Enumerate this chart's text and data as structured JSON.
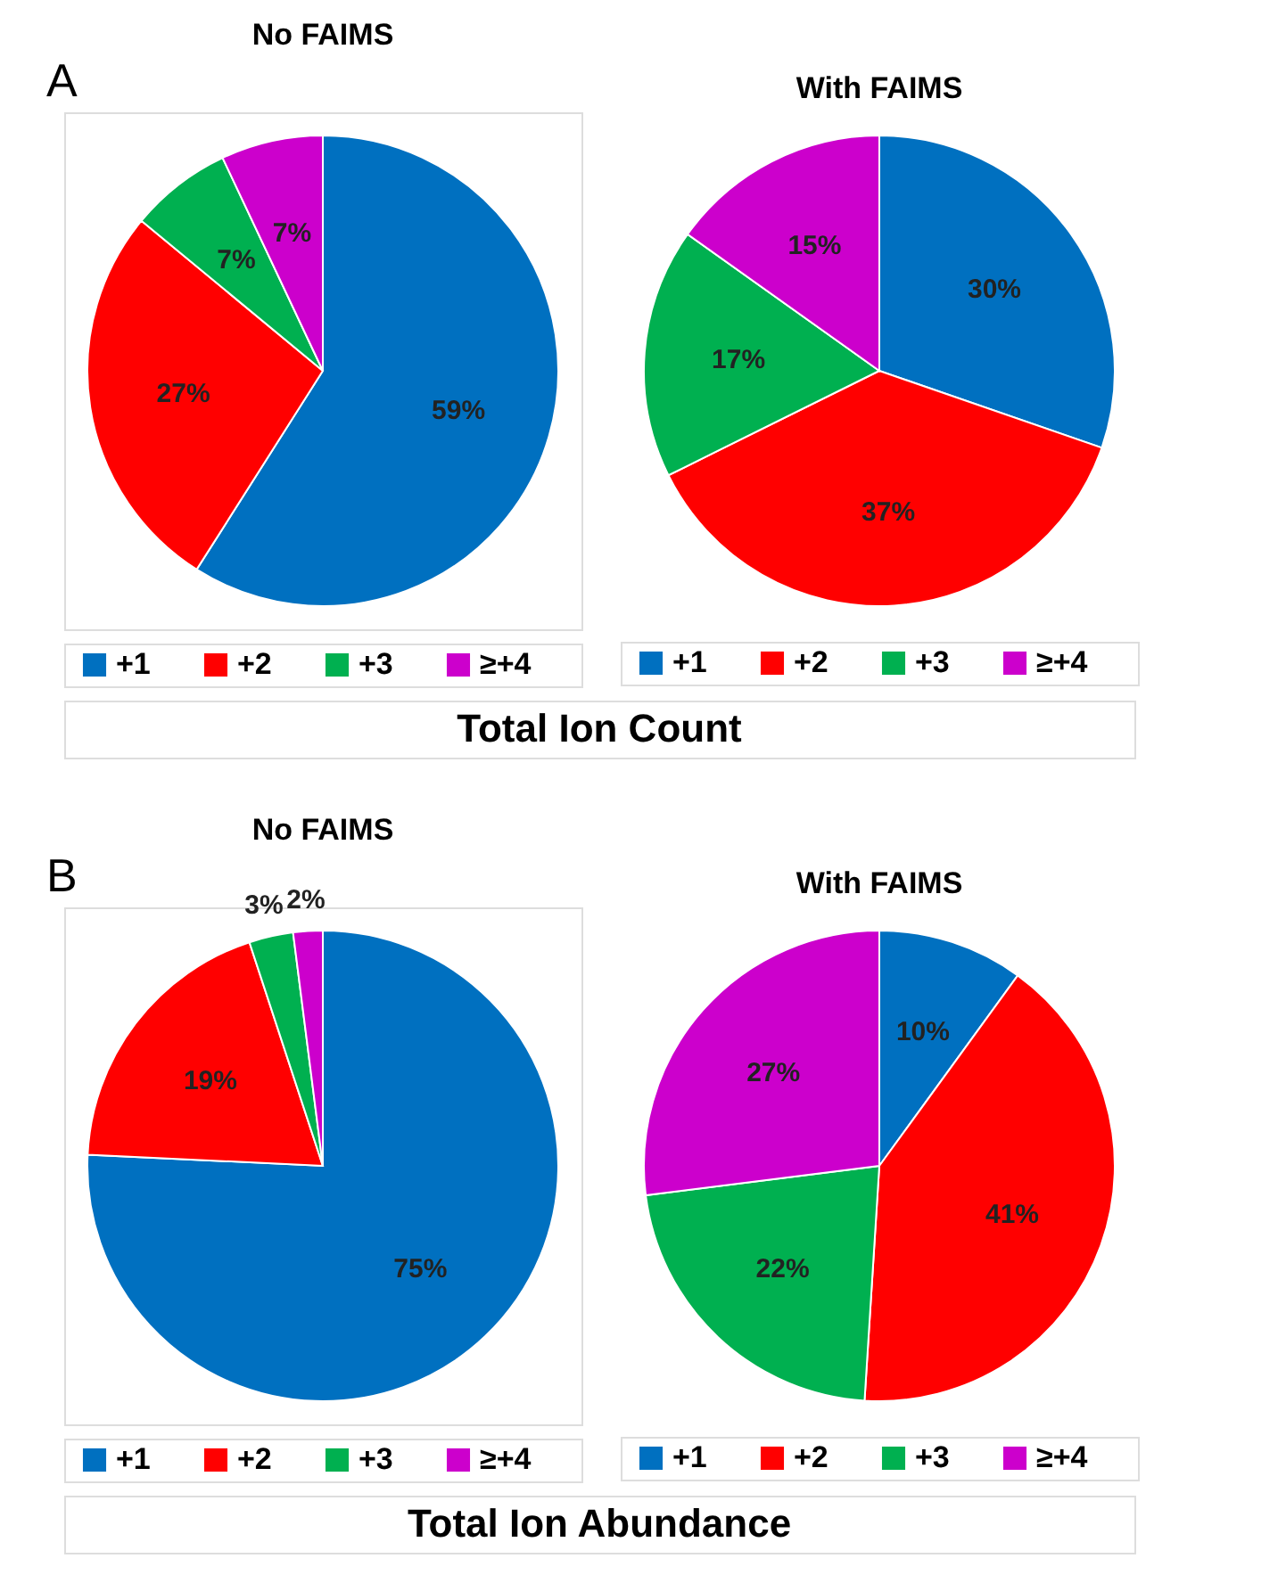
{
  "chart_data": [
    {
      "type": "pie",
      "title": "No FAIMS",
      "categories": [
        "+1",
        "+2",
        "+3",
        "≥+4"
      ],
      "values": [
        59,
        27,
        7,
        7
      ],
      "colors": [
        "#0070c0",
        "#ff0000",
        "#00b050",
        "#cc00cc"
      ],
      "value_labels": [
        "59%",
        "27%",
        "7%",
        "7%"
      ],
      "legend": "bottom",
      "annotations": [
        "A",
        "Total Ion Count"
      ]
    },
    {
      "type": "pie",
      "title": "With FAIMS",
      "categories": [
        "+1",
        "+2",
        "+3",
        "≥+4"
      ],
      "values": [
        30,
        37,
        17,
        15
      ],
      "colors": [
        "#0070c0",
        "#ff0000",
        "#00b050",
        "#cc00cc"
      ],
      "value_labels": [
        "30%",
        "37%",
        "17%",
        "15%"
      ],
      "legend": "bottom"
    },
    {
      "type": "pie",
      "title": "No FAIMS",
      "categories": [
        "+1",
        "+2",
        "+3",
        "≥+4"
      ],
      "values": [
        75,
        19,
        3,
        2
      ],
      "colors": [
        "#0070c0",
        "#ff0000",
        "#00b050",
        "#cc00cc"
      ],
      "value_labels": [
        "75%",
        "19%",
        "3%",
        "2%"
      ],
      "legend": "bottom",
      "annotations": [
        "B",
        "Total Ion Abundance"
      ]
    },
    {
      "type": "pie",
      "title": "With FAIMS",
      "categories": [
        "+1",
        "+2",
        "+3",
        "≥+4"
      ],
      "values": [
        10,
        41,
        22,
        27
      ],
      "colors": [
        "#0070c0",
        "#ff0000",
        "#00b050",
        "#cc00cc"
      ],
      "value_labels": [
        "10%",
        "41%",
        "22%",
        "27%"
      ],
      "legend": "bottom"
    }
  ]
}
